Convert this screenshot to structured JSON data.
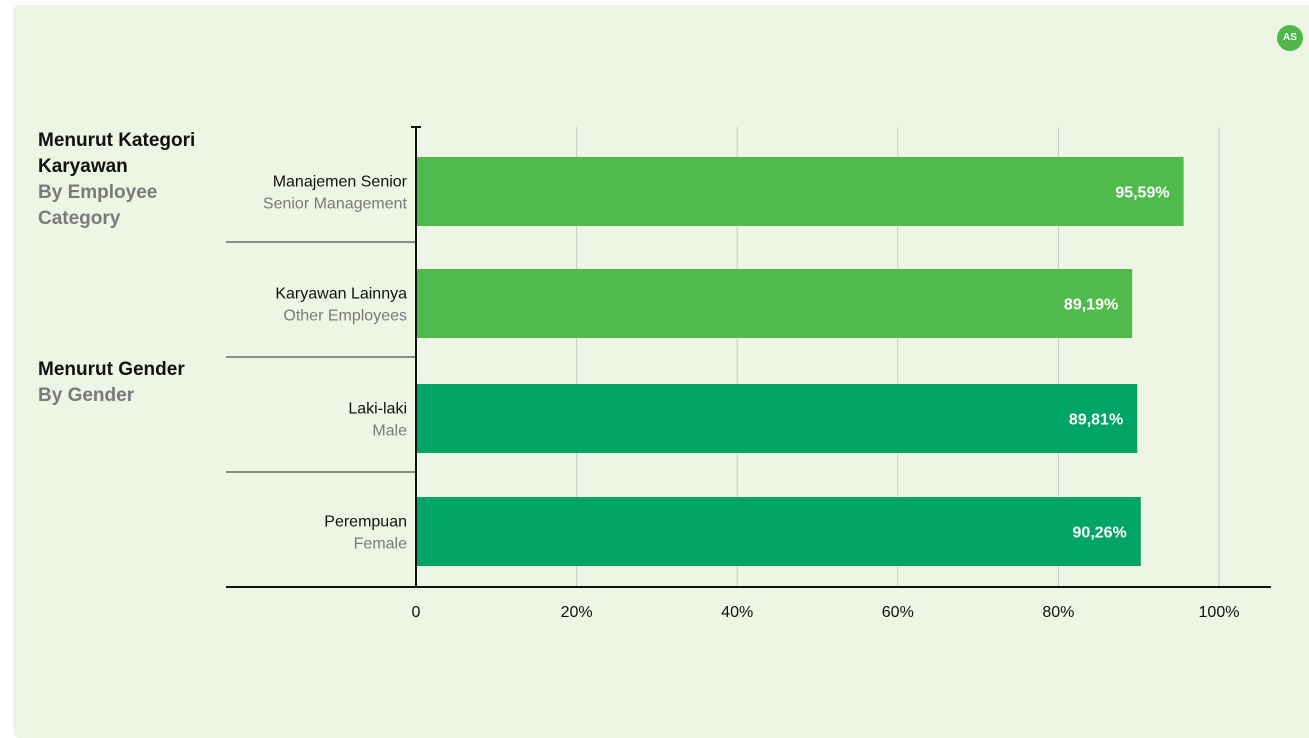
{
  "avatar": {
    "initials": "AS"
  },
  "groups": [
    {
      "title_id": "Menurut Kategori Karyawan",
      "title_en": "By Employee Category"
    },
    {
      "title_id": "Menurut Gender",
      "title_en": "By Gender"
    }
  ],
  "colors": {
    "panel_bg": "#eef5e4",
    "bar_category": "#50bb4c",
    "bar_gender": "#00a465",
    "label_primary": "#111111",
    "label_secondary": "#7a7a7a",
    "grid": "#c8c8c8",
    "value_text": "#ffffff"
  },
  "chart_data": {
    "type": "bar",
    "orientation": "horizontal",
    "xlim": [
      0,
      100
    ],
    "x_ticks": [
      "0",
      "20%",
      "40%",
      "60%",
      "80%",
      "100%"
    ],
    "grid": true,
    "categories": [
      {
        "label": "Manajemen Senior",
        "sublabel": "Senior Management",
        "group": 0
      },
      {
        "label": "Karyawan Lainnya",
        "sublabel": "Other Employees",
        "group": 0
      },
      {
        "label": "Laki-laki",
        "sublabel": "Male",
        "group": 1
      },
      {
        "label": "Perempuan",
        "sublabel": "Female",
        "group": 1
      }
    ],
    "values": [
      95.59,
      89.19,
      89.81,
      90.26
    ],
    "value_labels": [
      "95,59%",
      "89,19%",
      "89,81%",
      "90,26%"
    ]
  }
}
